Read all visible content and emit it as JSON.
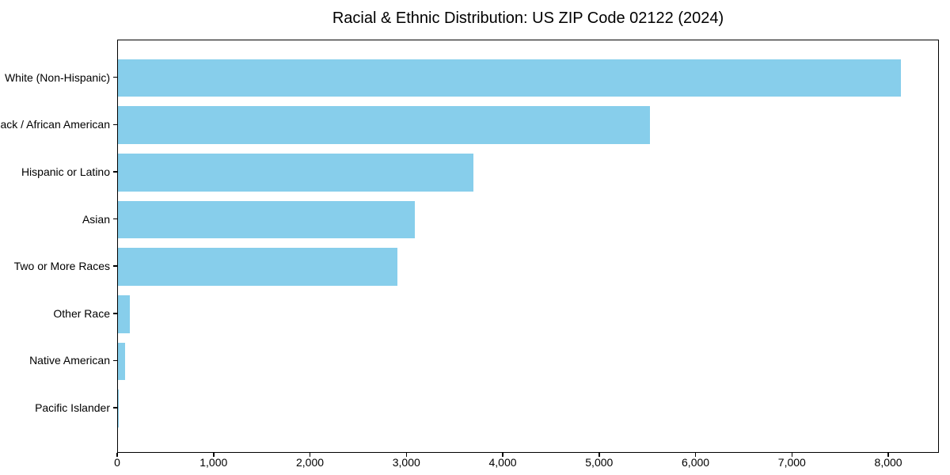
{
  "chart_data": {
    "type": "bar",
    "orientation": "horizontal",
    "title": "Racial & Ethnic Distribution: US ZIP Code 02122 (2024)",
    "categories": [
      "White (Non-Hispanic)",
      "Black / African American",
      "Hispanic or Latino",
      "Asian",
      "Two or More Races",
      "Other Race",
      "Native American",
      "Pacific Islander"
    ],
    "values": [
      8120,
      5520,
      3690,
      3080,
      2900,
      120,
      70,
      10
    ],
    "xlabel": "",
    "ylabel": "",
    "xlim": [
      0,
      8525
    ],
    "x_ticks": [
      0,
      1000,
      2000,
      3000,
      4000,
      5000,
      6000,
      7000,
      8000
    ],
    "x_tick_labels": [
      "0",
      "1,000",
      "2,000",
      "3,000",
      "4,000",
      "5,000",
      "6,000",
      "7,000",
      "8,000"
    ],
    "bar_color": "#87CEEB",
    "axis_color": "#000000",
    "text_color": "#000000",
    "background_color": "#ffffff",
    "grid": false,
    "legend": null
  }
}
